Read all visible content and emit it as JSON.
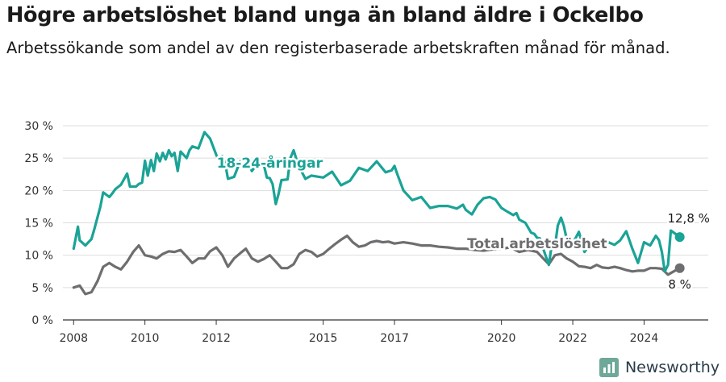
{
  "title": "Högre arbetslöshet bland unga än bland äldre i Ockelbo",
  "subtitle": "Arbetssökande som andel av den registerbaserade arbetskraften månad för månad.",
  "brand": {
    "name": "Newsworthy",
    "icon": "newsworthy-logo-icon",
    "color": "#6fa898"
  },
  "chart_data": {
    "type": "line",
    "ylim": [
      0,
      30
    ],
    "yticks": [
      0,
      5,
      10,
      15,
      20,
      25,
      30
    ],
    "ytick_labels": [
      "0 %",
      "5 %",
      "10 %",
      "15 %",
      "20 %",
      "25 %",
      "30 %"
    ],
    "xlim": [
      2007.7,
      2025.8
    ],
    "xticks": [
      2008,
      2010,
      2012,
      2015,
      2017,
      2020,
      2022,
      2024
    ],
    "xtick_labels": [
      "2008",
      "2010",
      "2012",
      "2015",
      "2017",
      "2020",
      "2022",
      "2024"
    ],
    "grid": true,
    "series": [
      {
        "name": "18-24-åringar",
        "color": "#1aa396",
        "end_label": "12,8 %",
        "x": [
          2008.0,
          2008.12,
          2008.17,
          2008.33,
          2008.5,
          2008.58,
          2008.75,
          2008.83,
          2009.0,
          2009.08,
          2009.17,
          2009.33,
          2009.5,
          2009.58,
          2009.67,
          2009.75,
          2009.83,
          2009.92,
          2010.0,
          2010.08,
          2010.17,
          2010.25,
          2010.33,
          2010.42,
          2010.5,
          2010.58,
          2010.67,
          2010.75,
          2010.83,
          2010.92,
          2011.0,
          2011.17,
          2011.25,
          2011.33,
          2011.5,
          2011.67,
          2011.83,
          2012.0,
          2012.08,
          2012.17,
          2012.25,
          2012.33,
          2012.5,
          2012.67,
          2012.83,
          2013.0,
          2013.17,
          2013.33,
          2013.42,
          2013.5,
          2013.58,
          2013.67,
          2013.75,
          2013.83,
          2014.0,
          2014.08,
          2014.17,
          2014.25,
          2014.33,
          2014.5,
          2014.67,
          2015.0,
          2015.25,
          2015.5,
          2015.75,
          2016.0,
          2016.25,
          2016.5,
          2016.75,
          2016.92,
          2017.0,
          2017.08,
          2017.25,
          2017.5,
          2017.75,
          2018.0,
          2018.25,
          2018.5,
          2018.75,
          2018.92,
          2019.0,
          2019.17,
          2019.33,
          2019.5,
          2019.67,
          2019.83,
          2020.0,
          2020.17,
          2020.33,
          2020.42,
          2020.5,
          2020.67,
          2020.83,
          2020.92,
          2021.0,
          2021.08,
          2021.17,
          2021.33,
          2021.42,
          2021.5,
          2021.58,
          2021.67,
          2021.75,
          2021.83,
          2021.92,
          2022.0,
          2022.17,
          2022.33,
          2022.5,
          2022.67,
          2022.83,
          2023.0,
          2023.17,
          2023.33,
          2023.5,
          2023.67,
          2023.83,
          2024.0,
          2024.17,
          2024.33,
          2024.42,
          2024.5,
          2024.58,
          2024.67,
          2024.75,
          2024.83,
          2025.0
        ],
        "values": [
          11.0,
          14.4,
          12.3,
          11.5,
          12.5,
          14.0,
          17.5,
          19.7,
          19.0,
          19.5,
          20.2,
          20.9,
          22.6,
          20.6,
          20.6,
          20.6,
          21.0,
          21.2,
          24.6,
          22.3,
          24.7,
          23.0,
          25.7,
          24.5,
          25.8,
          24.8,
          26.2,
          25.3,
          25.8,
          23.0,
          26.0,
          25.0,
          26.2,
          26.8,
          26.5,
          29.0,
          28.0,
          25.5,
          24.6,
          25.3,
          24.2,
          21.8,
          22.1,
          24.5,
          24.8,
          23.0,
          24.3,
          24.1,
          22.0,
          21.9,
          21.0,
          17.9,
          19.5,
          21.6,
          21.7,
          25.0,
          26.2,
          24.8,
          23.6,
          21.8,
          22.3,
          22.0,
          22.9,
          20.8,
          21.5,
          23.5,
          23.0,
          24.5,
          22.8,
          23.1,
          23.8,
          22.5,
          20.0,
          18.5,
          19.0,
          17.3,
          17.6,
          17.6,
          17.2,
          17.8,
          17.0,
          16.3,
          17.8,
          18.8,
          19.0,
          18.6,
          17.3,
          16.7,
          16.2,
          16.5,
          15.5,
          15.0,
          13.5,
          13.3,
          12.7,
          12.6,
          11.0,
          8.5,
          12.0,
          11.3,
          14.6,
          15.8,
          14.5,
          12.5,
          12.3,
          11.8,
          13.6,
          10.5,
          11.8,
          11.0,
          11.6,
          12.0,
          11.6,
          12.3,
          13.7,
          11.0,
          8.8,
          12.0,
          11.5,
          13.0,
          12.3,
          10.5,
          7.5,
          8.5,
          13.8,
          13.5,
          12.8
        ]
      },
      {
        "name": "Total arbetslöshet",
        "color": "#6e6d70",
        "end_label": "8 %",
        "x": [
          2008.0,
          2008.17,
          2008.33,
          2008.5,
          2008.67,
          2008.83,
          2009.0,
          2009.17,
          2009.33,
          2009.5,
          2009.67,
          2009.83,
          2010.0,
          2010.17,
          2010.33,
          2010.5,
          2010.67,
          2010.83,
          2011.0,
          2011.17,
          2011.33,
          2011.5,
          2011.67,
          2011.83,
          2012.0,
          2012.17,
          2012.33,
          2012.5,
          2012.67,
          2012.83,
          2013.0,
          2013.17,
          2013.33,
          2013.5,
          2013.67,
          2013.83,
          2014.0,
          2014.17,
          2014.33,
          2014.5,
          2014.67,
          2014.83,
          2015.0,
          2015.17,
          2015.33,
          2015.5,
          2015.67,
          2015.83,
          2016.0,
          2016.17,
          2016.33,
          2016.5,
          2016.67,
          2016.83,
          2017.0,
          2017.25,
          2017.5,
          2017.75,
          2018.0,
          2018.25,
          2018.5,
          2018.75,
          2019.0,
          2019.25,
          2019.5,
          2019.75,
          2020.0,
          2020.25,
          2020.5,
          2020.75,
          2021.0,
          2021.17,
          2021.33,
          2021.5,
          2021.67,
          2021.83,
          2022.0,
          2022.17,
          2022.33,
          2022.5,
          2022.67,
          2022.83,
          2023.0,
          2023.17,
          2023.33,
          2023.5,
          2023.67,
          2023.83,
          2024.0,
          2024.17,
          2024.33,
          2024.5,
          2024.67,
          2024.83,
          2025.0
        ],
        "values": [
          5.0,
          5.3,
          4.0,
          4.3,
          6.0,
          8.2,
          8.8,
          8.2,
          7.8,
          9.0,
          10.5,
          11.5,
          10.0,
          9.8,
          9.5,
          10.2,
          10.6,
          10.5,
          10.8,
          9.8,
          8.8,
          9.5,
          9.5,
          10.6,
          11.2,
          10.0,
          8.2,
          9.5,
          10.3,
          11.0,
          9.5,
          9.0,
          9.4,
          10.0,
          9.0,
          8.0,
          8.0,
          8.6,
          10.2,
          10.8,
          10.5,
          9.8,
          10.2,
          11.0,
          11.7,
          12.4,
          13.0,
          12.0,
          11.3,
          11.5,
          12.0,
          12.2,
          12.0,
          12.1,
          11.8,
          12.0,
          11.8,
          11.5,
          11.5,
          11.3,
          11.2,
          11.0,
          11.0,
          10.8,
          10.7,
          10.9,
          11.0,
          11.2,
          10.5,
          10.8,
          10.5,
          9.5,
          8.6,
          10.0,
          10.2,
          9.5,
          9.0,
          8.3,
          8.2,
          8.0,
          8.5,
          8.1,
          8.0,
          8.2,
          8.0,
          7.7,
          7.5,
          7.6,
          7.6,
          8.0,
          8.0,
          7.9,
          7.0,
          7.5,
          8.0
        ]
      }
    ]
  }
}
